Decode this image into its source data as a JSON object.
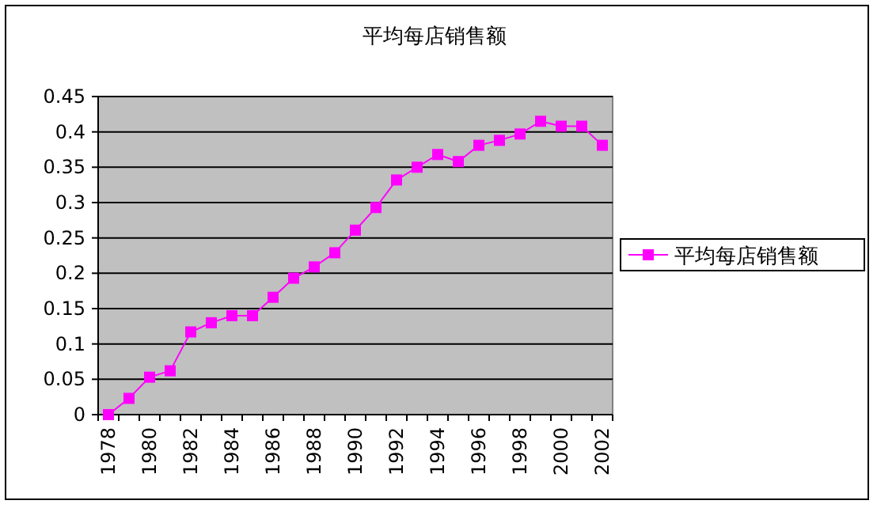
{
  "chart_data": {
    "type": "line",
    "title": "平均每店销售额",
    "categories": [
      "1978",
      null,
      "1980",
      null,
      "1982",
      null,
      "1984",
      null,
      "1986",
      null,
      "1988",
      null,
      "1990",
      null,
      "1992",
      null,
      "1994",
      null,
      "1996",
      null,
      "1998",
      null,
      "2000",
      null,
      "2002"
    ],
    "series": [
      {
        "name": "平均每店销售额",
        "color": "#ff00ff",
        "values": [
          0,
          0.023,
          0.053,
          0.062,
          0.117,
          0.13,
          0.14,
          0.14,
          0.166,
          0.193,
          0.209,
          0.229,
          0.261,
          0.293,
          0.332,
          0.35,
          0.368,
          0.358,
          0.381,
          0.388,
          0.397,
          0.415,
          0.408,
          0.408,
          0.381
        ]
      }
    ],
    "ylim": [
      0,
      0.45
    ],
    "yticks": [
      0,
      0.05,
      0.1,
      0.15,
      0.2,
      0.25,
      0.3,
      0.35,
      0.4,
      0.45
    ],
    "grid": "y",
    "legend": "right",
    "marker": "square",
    "line_style": "solid"
  }
}
